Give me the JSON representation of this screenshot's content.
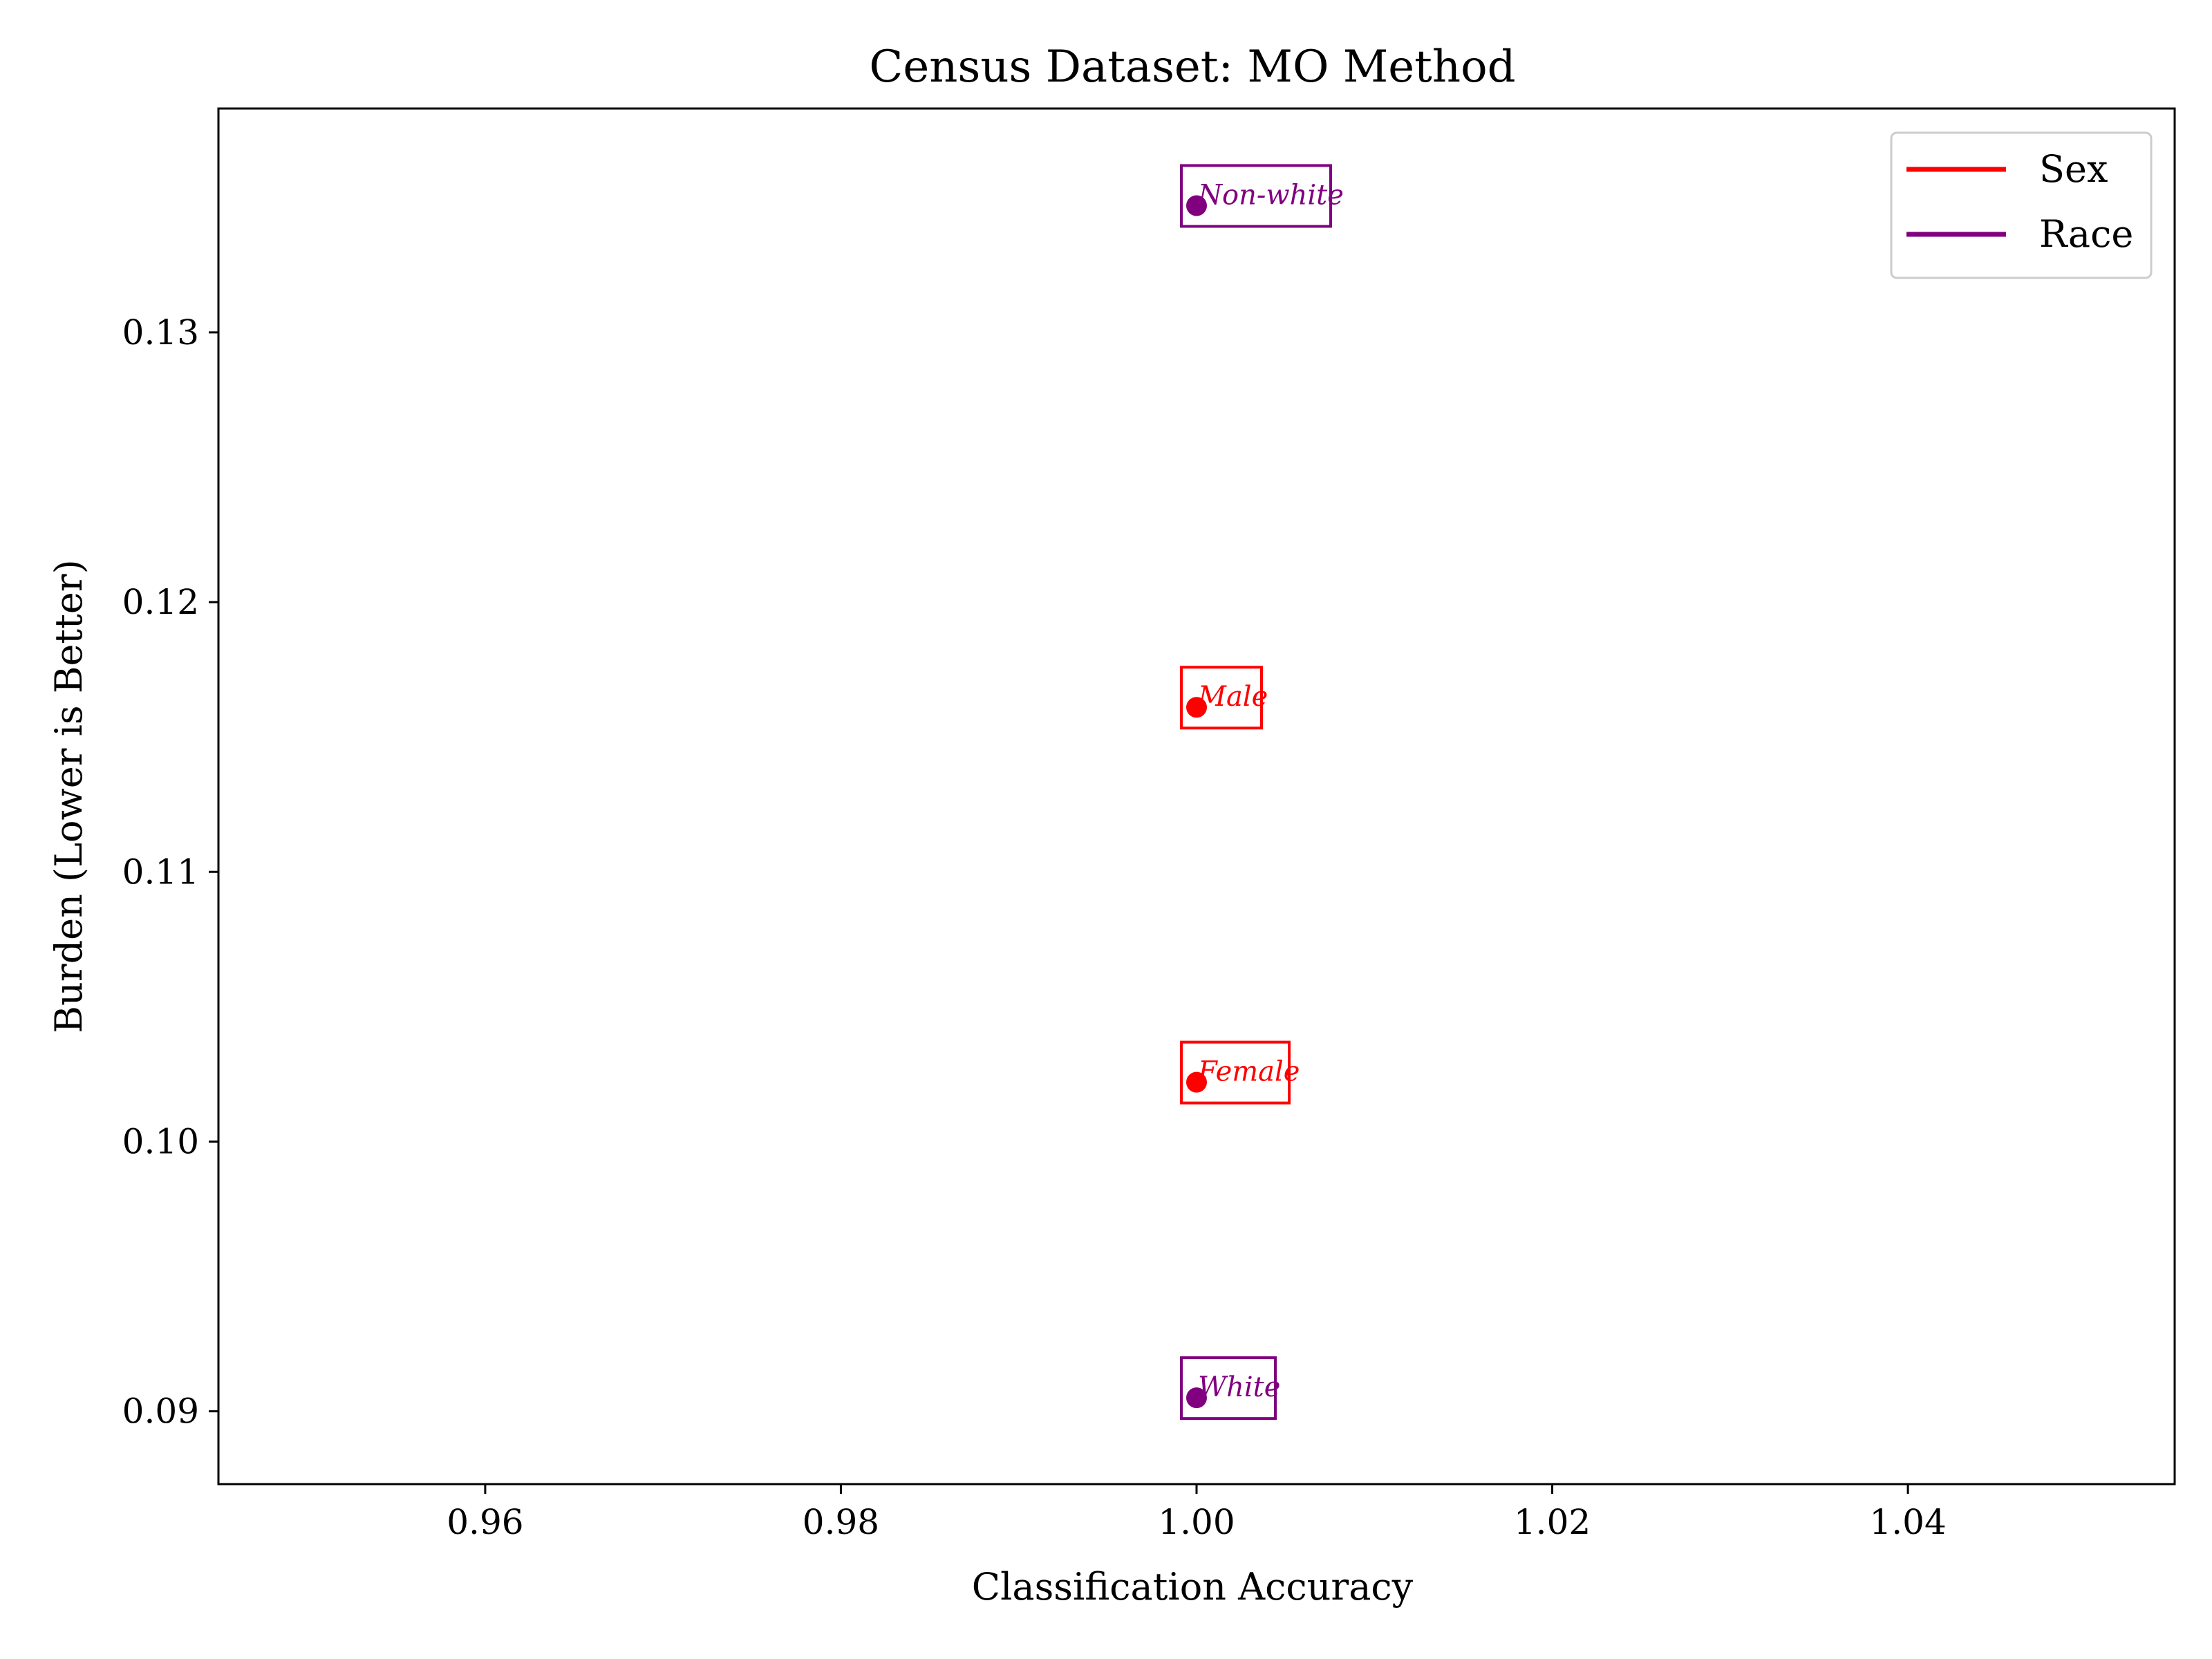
{
  "chart_data": {
    "type": "scatter",
    "title": "Census Dataset: MO Method",
    "xlabel": "Classification Accuracy",
    "ylabel": "Burden (Lower is Better)",
    "xlim": [
      0.945,
      1.055
    ],
    "ylim": [
      0.0873,
      0.1383
    ],
    "x_ticks": [
      0.96,
      0.98,
      1.0,
      1.02,
      1.04
    ],
    "x_tick_labels": [
      "0.96",
      "0.98",
      "1.00",
      "1.02",
      "1.04"
    ],
    "y_ticks": [
      0.09,
      0.1,
      0.11,
      0.12,
      0.13
    ],
    "y_tick_labels": [
      "0.09",
      "0.10",
      "0.11",
      "0.12",
      "0.13"
    ],
    "grid": false,
    "legend_position": "top-right",
    "series": [
      {
        "name": "Sex",
        "color": "#ff0000",
        "points": [
          {
            "label": "Male",
            "x": 1.0,
            "y": 0.1161
          },
          {
            "label": "Female",
            "x": 1.0,
            "y": 0.1022
          }
        ]
      },
      {
        "name": "Race",
        "color": "#800080",
        "points": [
          {
            "label": "Non-white",
            "x": 1.0,
            "y": 0.1347
          },
          {
            "label": "White",
            "x": 1.0,
            "y": 0.0905
          }
        ]
      }
    ]
  }
}
